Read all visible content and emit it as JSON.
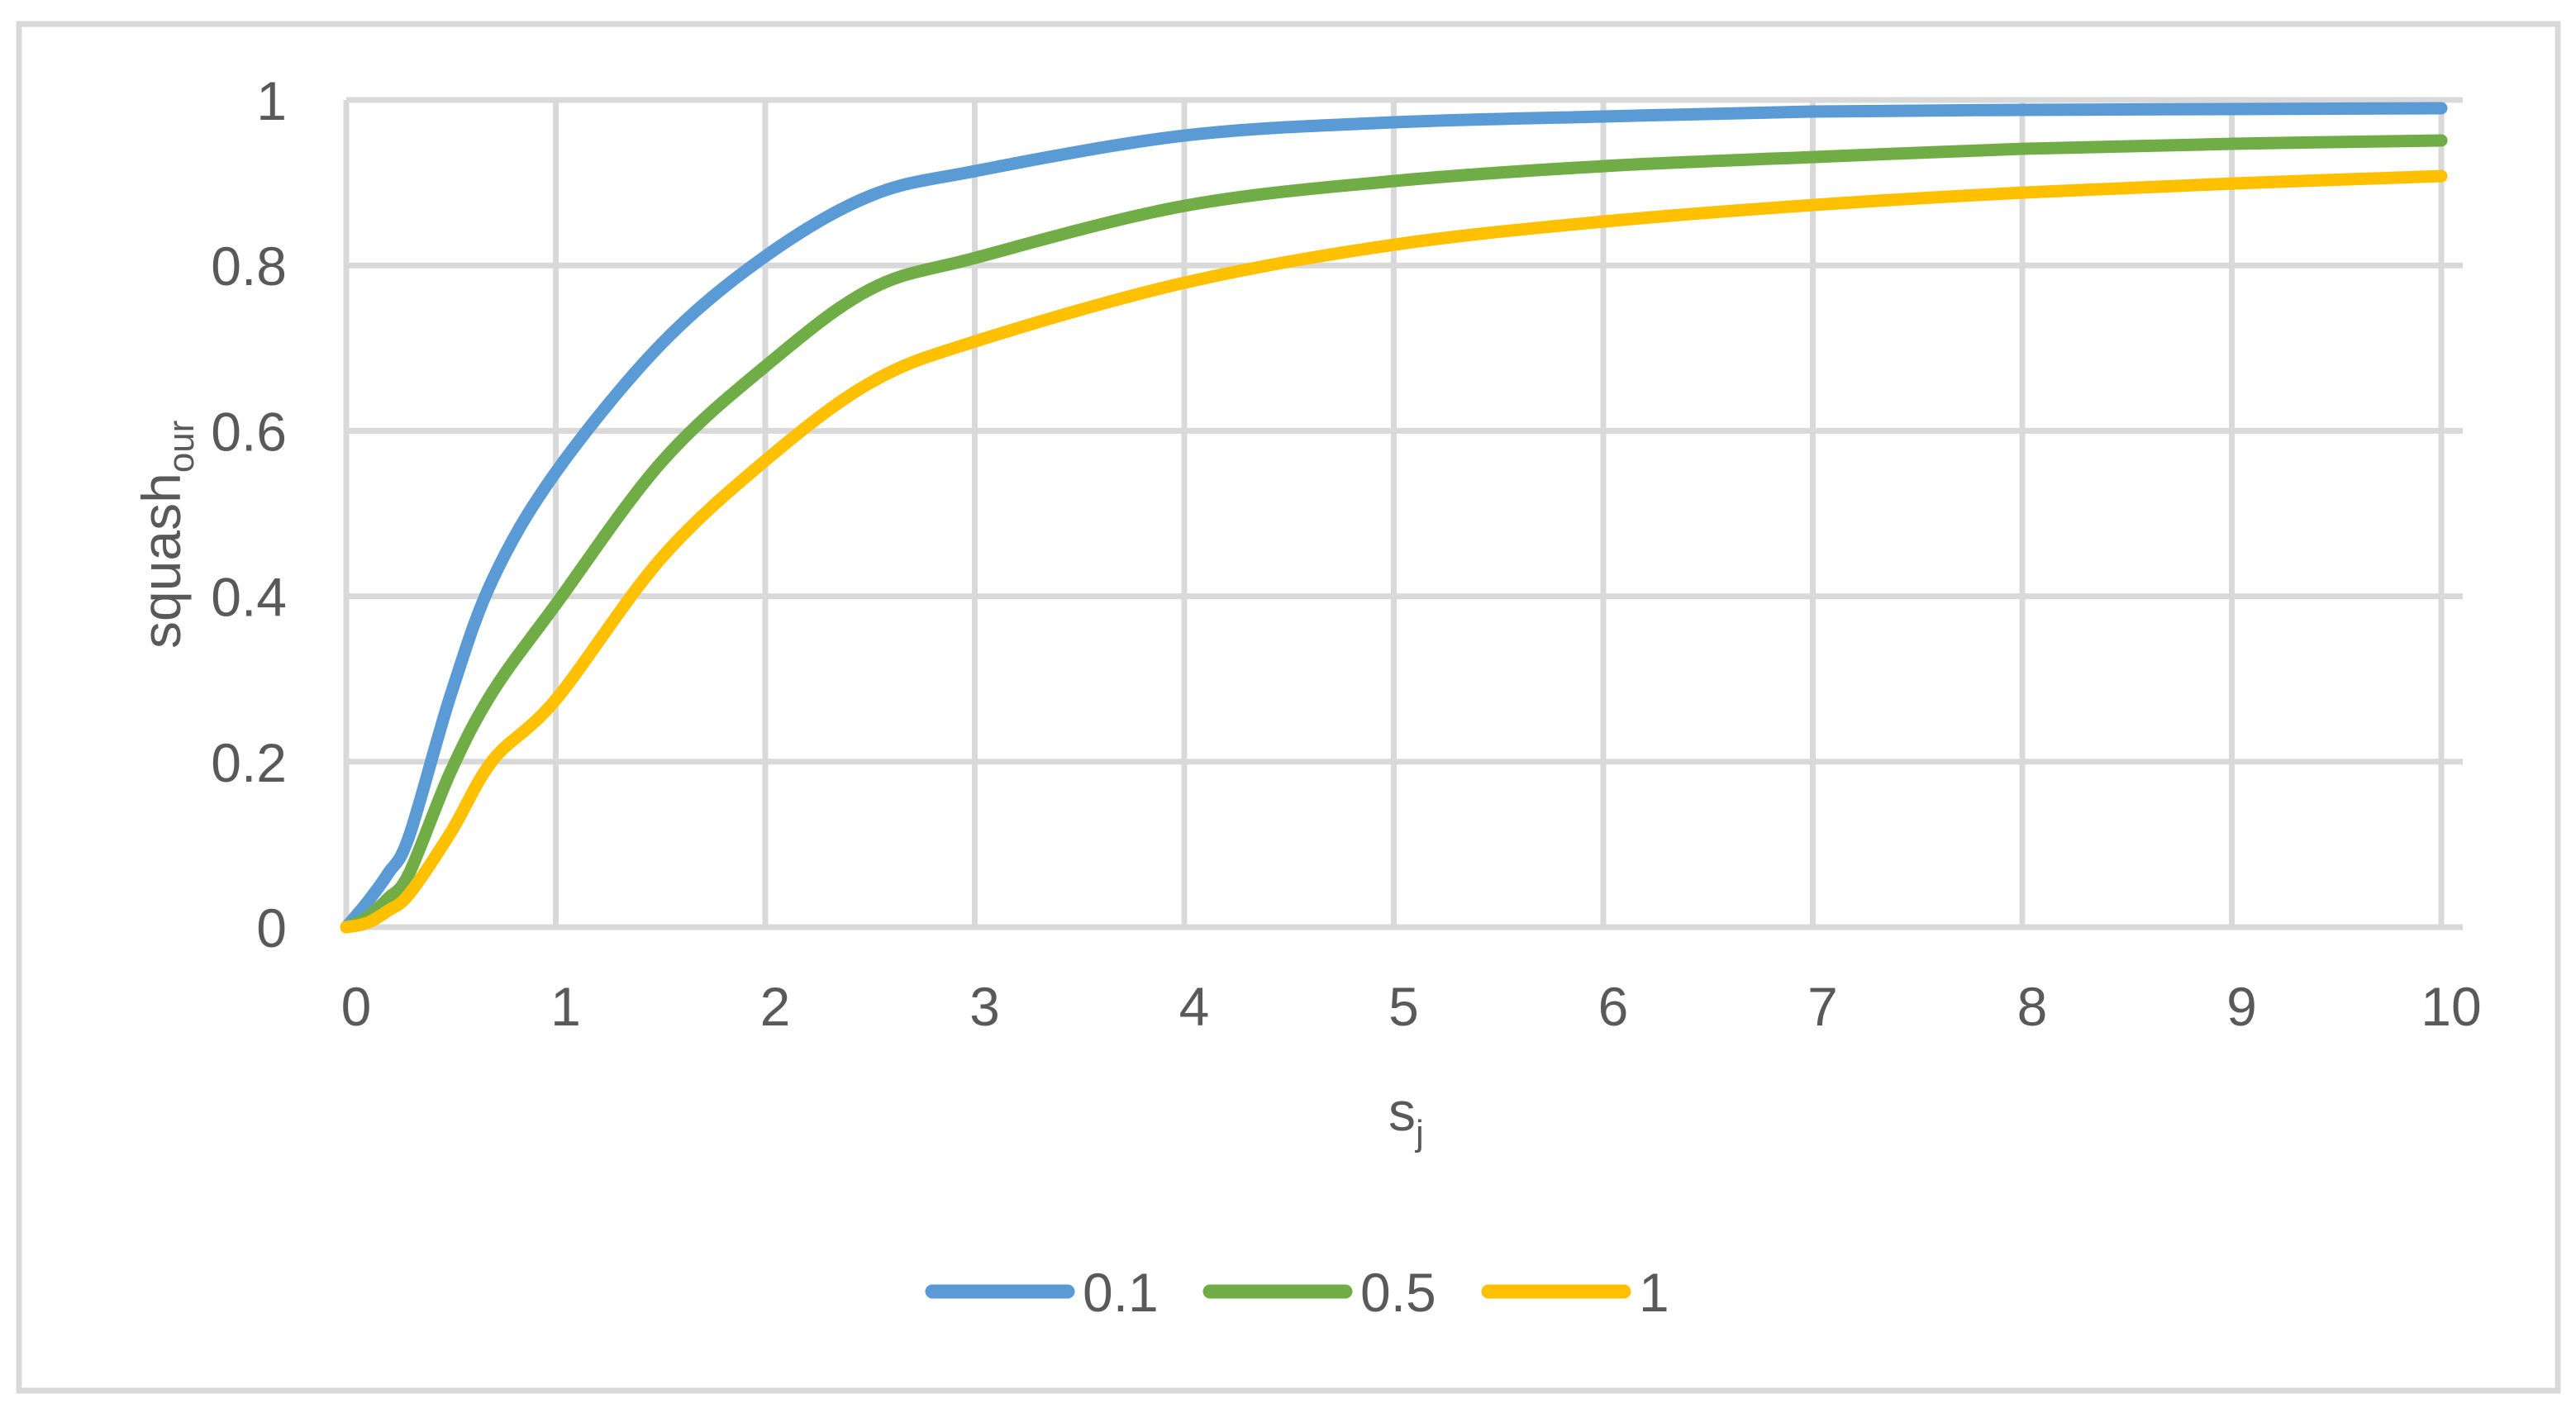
{
  "chart_data": {
    "type": "line",
    "title": "",
    "xlabel": "s",
    "xlabel_subscript": "j",
    "ylabel": "squash",
    "ylabel_subscript": "our",
    "xlim": [
      0,
      10
    ],
    "ylim": [
      0,
      1
    ],
    "x_ticks": [
      "0",
      "1",
      "2",
      "3",
      "4",
      "5",
      "6",
      "7",
      "8",
      "9",
      "10"
    ],
    "y_ticks": [
      "0",
      "0.2",
      "0.4",
      "0.6",
      "0.8",
      "1"
    ],
    "grid": true,
    "legend_position": "bottom",
    "x": [
      0,
      0.1,
      0.2,
      0.3,
      0.5,
      0.7,
      1,
      1.5,
      2,
      2.5,
      3,
      4,
      5,
      6,
      7,
      8,
      9,
      10
    ],
    "series": [
      {
        "name": "0.1",
        "color": "#5b9bd5",
        "values": [
          0,
          0.03,
          0.065,
          0.11,
          0.282,
          0.421,
          0.55,
          0.704,
          0.811,
          0.884,
          0.914,
          0.957,
          0.973,
          0.98,
          0.986,
          0.988,
          0.989,
          0.99
        ]
      },
      {
        "name": "0.5",
        "color": "#70ad47",
        "values": [
          0,
          0.012,
          0.035,
          0.065,
          0.189,
          0.285,
          0.39,
          0.561,
          0.678,
          0.771,
          0.809,
          0.872,
          0.902,
          0.92,
          0.931,
          0.941,
          0.947,
          0.951
        ]
      },
      {
        "name": "1",
        "color": "#ffc000",
        "values": [
          0,
          0.005,
          0.02,
          0.04,
          0.115,
          0.202,
          0.275,
          0.445,
          0.564,
          0.658,
          0.708,
          0.779,
          0.825,
          0.853,
          0.873,
          0.888,
          0.899,
          0.908
        ]
      }
    ]
  },
  "legend": {
    "items": [
      {
        "label": "0.1",
        "color": "#5b9bd5"
      },
      {
        "label": "0.5",
        "color": "#70ad47"
      },
      {
        "label": "1",
        "color": "#ffc000"
      }
    ]
  },
  "colors": {
    "grid": "#d9d9d9",
    "border": "#d9d9d9",
    "text": "#595959"
  }
}
